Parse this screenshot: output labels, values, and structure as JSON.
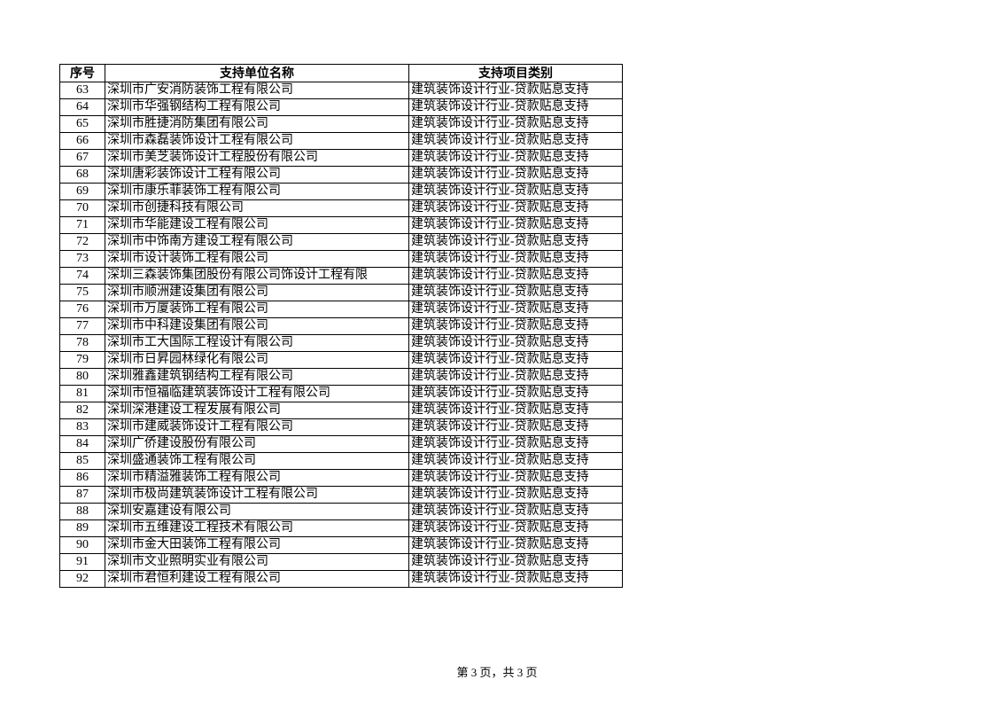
{
  "table": {
    "headers": [
      "序号",
      "支持单位名称",
      "支持项目类别"
    ],
    "rows": [
      {
        "no": "63",
        "name": "深圳市广安消防装饰工程有限公司",
        "category": "建筑装饰设计行业-贷款贴息支持"
      },
      {
        "no": "64",
        "name": "深圳市华强钢结构工程有限公司",
        "category": "建筑装饰设计行业-贷款贴息支持"
      },
      {
        "no": "65",
        "name": "深圳市胜捷消防集团有限公司",
        "category": "建筑装饰设计行业-贷款贴息支持"
      },
      {
        "no": "66",
        "name": "深圳市森磊装饰设计工程有限公司",
        "category": "建筑装饰设计行业-贷款贴息支持"
      },
      {
        "no": "67",
        "name": "深圳市美芝装饰设计工程股份有限公司",
        "category": "建筑装饰设计行业-贷款贴息支持"
      },
      {
        "no": "68",
        "name": "深圳唐彩装饰设计工程有限公司",
        "category": "建筑装饰设计行业-贷款贴息支持"
      },
      {
        "no": "69",
        "name": "深圳市康乐菲装饰工程有限公司",
        "category": "建筑装饰设计行业-贷款贴息支持"
      },
      {
        "no": "70",
        "name": "深圳市创捷科技有限公司",
        "category": "建筑装饰设计行业-贷款贴息支持"
      },
      {
        "no": "71",
        "name": "深圳市华能建设工程有限公司",
        "category": "建筑装饰设计行业-贷款贴息支持"
      },
      {
        "no": "72",
        "name": "深圳市中饰南方建设工程有限公司",
        "category": "建筑装饰设计行业-贷款贴息支持"
      },
      {
        "no": "73",
        "name": "深圳市设计装饰工程有限公司",
        "category": "建筑装饰设计行业-贷款贴息支持"
      },
      {
        "no": "74",
        "name": "深圳三森装饰集团股份有限公司饰设计工程有限",
        "category": "建筑装饰设计行业-贷款贴息支持"
      },
      {
        "no": "75",
        "name": "深圳市顺洲建设集团有限公司",
        "category": "建筑装饰设计行业-贷款贴息支持"
      },
      {
        "no": "76",
        "name": "深圳市万厦装饰工程有限公司",
        "category": "建筑装饰设计行业-贷款贴息支持"
      },
      {
        "no": "77",
        "name": "深圳市中科建设集团有限公司",
        "category": "建筑装饰设计行业-贷款贴息支持"
      },
      {
        "no": "78",
        "name": "深圳市工大国际工程设计有限公司",
        "category": "建筑装饰设计行业-贷款贴息支持"
      },
      {
        "no": "79",
        "name": "深圳市日昇园林绿化有限公司",
        "category": "建筑装饰设计行业-贷款贴息支持"
      },
      {
        "no": "80",
        "name": "深圳雅鑫建筑钢结构工程有限公司",
        "category": "建筑装饰设计行业-贷款贴息支持"
      },
      {
        "no": "81",
        "name": "深圳市恒福临建筑装饰设计工程有限公司",
        "category": "建筑装饰设计行业-贷款贴息支持"
      },
      {
        "no": "82",
        "name": "深圳深港建设工程发展有限公司",
        "category": "建筑装饰设计行业-贷款贴息支持"
      },
      {
        "no": "83",
        "name": "深圳市建威装饰设计工程有限公司",
        "category": "建筑装饰设计行业-贷款贴息支持"
      },
      {
        "no": "84",
        "name": "深圳广侨建设股份有限公司",
        "category": "建筑装饰设计行业-贷款贴息支持"
      },
      {
        "no": "85",
        "name": "深圳盛通装饰工程有限公司",
        "category": "建筑装饰设计行业-贷款贴息支持"
      },
      {
        "no": "86",
        "name": "深圳市精溢雅装饰工程有限公司",
        "category": "建筑装饰设计行业-贷款贴息支持"
      },
      {
        "no": "87",
        "name": "深圳市极尚建筑装饰设计工程有限公司",
        "category": "建筑装饰设计行业-贷款贴息支持"
      },
      {
        "no": "88",
        "name": "深圳安嘉建设有限公司",
        "category": "建筑装饰设计行业-贷款贴息支持"
      },
      {
        "no": "89",
        "name": "深圳市五维建设工程技术有限公司",
        "category": "建筑装饰设计行业-贷款贴息支持"
      },
      {
        "no": "90",
        "name": "深圳市金大田装饰工程有限公司",
        "category": "建筑装饰设计行业-贷款贴息支持"
      },
      {
        "no": "91",
        "name": "深圳市文业照明实业有限公司",
        "category": "建筑装饰设计行业-贷款贴息支持"
      },
      {
        "no": "92",
        "name": "深圳市君恒利建设工程有限公司",
        "category": "建筑装饰设计行业-贷款贴息支持"
      }
    ]
  },
  "footer": {
    "page_label": "第 3 页，共 3 页"
  }
}
